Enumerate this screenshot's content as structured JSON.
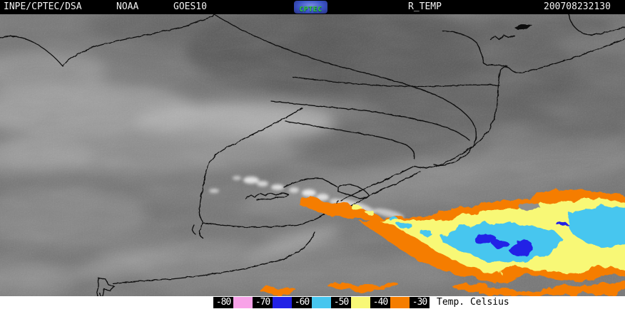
{
  "header": {
    "agency": "INPE/CPTEC/DSA",
    "network": "NOAA",
    "satellite": "GOES10",
    "logo_text": "CPTEC",
    "product": "R_TEMP",
    "timestamp": "200708232130"
  },
  "legend": {
    "unit_label": "Temp. Celsius",
    "items": [
      {
        "type": "label",
        "text": "-80"
      },
      {
        "type": "swatch",
        "color": "#f8a2e8"
      },
      {
        "type": "label",
        "text": "-70"
      },
      {
        "type": "swatch",
        "color": "#2121e6"
      },
      {
        "type": "label",
        "text": "-60"
      },
      {
        "type": "swatch",
        "color": "#47c6ef"
      },
      {
        "type": "label",
        "text": "-50"
      },
      {
        "type": "swatch",
        "color": "#f8f876"
      },
      {
        "type": "label",
        "text": "-40"
      },
      {
        "type": "swatch",
        "color": "#f57d00"
      },
      {
        "type": "label",
        "text": "-30"
      }
    ]
  },
  "palette": {
    "pink": "#f8a2e8",
    "blue": "#2121e6",
    "cyan": "#47c6ef",
    "yellow": "#f8f876",
    "orange": "#f57d00"
  }
}
